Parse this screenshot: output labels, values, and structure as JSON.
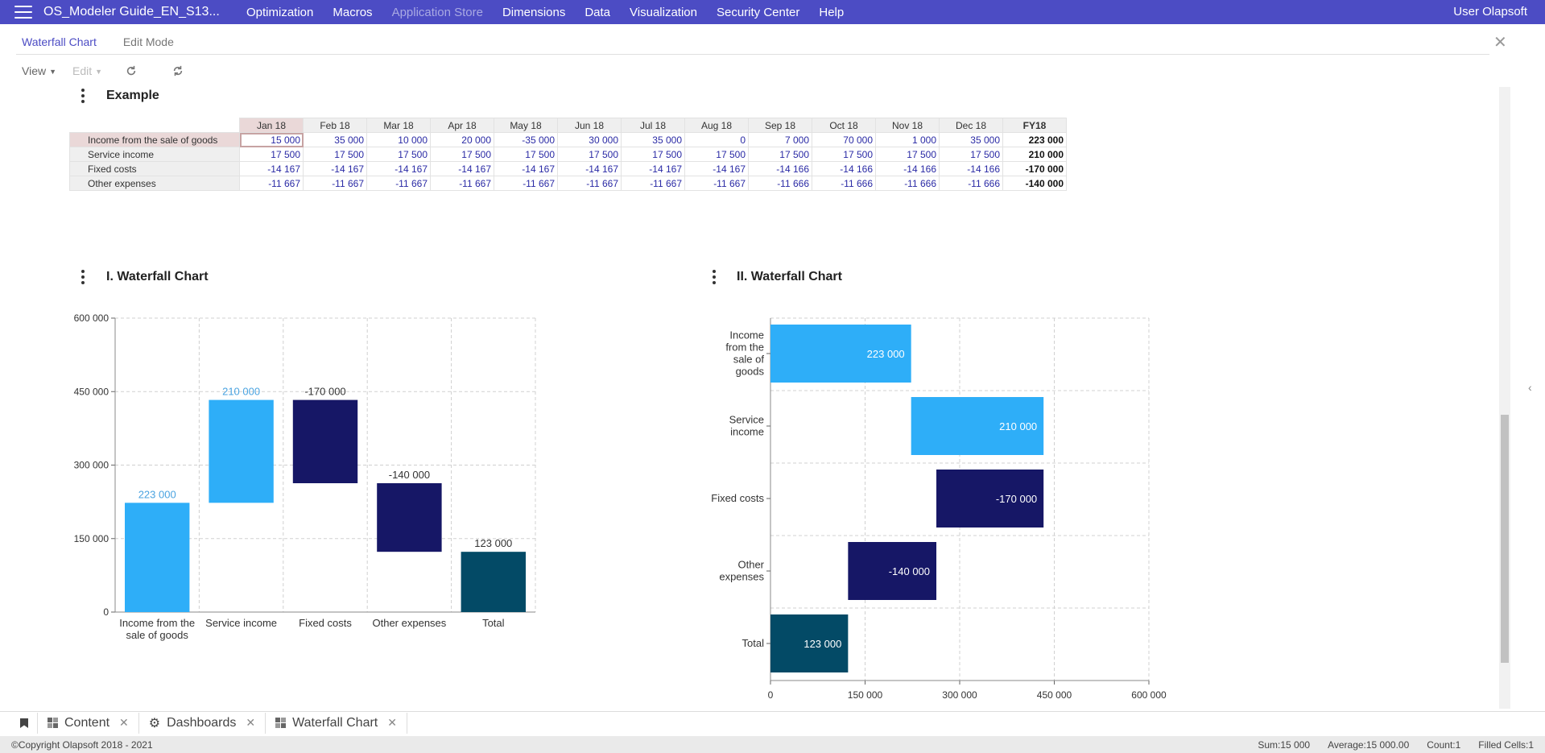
{
  "app": {
    "title": "OS_Modeler Guide_EN_S13...",
    "menu": [
      "Optimization",
      "Macros",
      "Application Store",
      "Dimensions",
      "Data",
      "Visualization",
      "Security Center",
      "Help"
    ],
    "user": "User Olapsoft"
  },
  "tabs": {
    "active": "Waterfall Chart",
    "edit": "Edit Mode"
  },
  "toolbar": {
    "view": "View",
    "edit": "Edit"
  },
  "example": {
    "title": "Example",
    "columns": [
      "Jan 18",
      "Feb 18",
      "Mar 18",
      "Apr 18",
      "May 18",
      "Jun 18",
      "Jul 18",
      "Aug 18",
      "Sep 18",
      "Oct 18",
      "Nov 18",
      "Dec 18",
      "FY18"
    ],
    "rows": [
      {
        "label": "Income from the sale of goods",
        "values": [
          "15 000",
          "35 000",
          "10 000",
          "20 000",
          "-35 000",
          "30 000",
          "35 000",
          "0",
          "7 000",
          "70 000",
          "1 000",
          "35 000",
          "223 000"
        ]
      },
      {
        "label": "Service income",
        "values": [
          "17 500",
          "17 500",
          "17 500",
          "17 500",
          "17 500",
          "17 500",
          "17 500",
          "17 500",
          "17 500",
          "17 500",
          "17 500",
          "17 500",
          "210 000"
        ]
      },
      {
        "label": "Fixed costs",
        "values": [
          "-14 167",
          "-14 167",
          "-14 167",
          "-14 167",
          "-14 167",
          "-14 167",
          "-14 167",
          "-14 167",
          "-14 166",
          "-14 166",
          "-14 166",
          "-14 166",
          "-170 000"
        ]
      },
      {
        "label": "Other expenses",
        "values": [
          "-11 667",
          "-11 667",
          "-11 667",
          "-11 667",
          "-11 667",
          "-11 667",
          "-11 667",
          "-11 667",
          "-11 666",
          "-11 666",
          "-11 666",
          "-11 666",
          "-140 000"
        ]
      }
    ]
  },
  "chart1": {
    "title": "I. Waterfall Chart"
  },
  "chart2": {
    "title": "II. Waterfall Chart"
  },
  "chart_data": [
    {
      "type": "bar",
      "orientation": "vertical",
      "waterfall": true,
      "categories": [
        "Income from the sale of goods",
        "Service income",
        "Fixed costs",
        "Other expenses",
        "Total"
      ],
      "values": [
        223000,
        210000,
        -170000,
        -140000,
        123000
      ],
      "labels": [
        "223 000",
        "210 000",
        "-170 000",
        "-140 000",
        "123 000"
      ],
      "ylim": [
        0,
        600000
      ],
      "yticks": [
        0,
        150000,
        300000,
        450000,
        600000
      ],
      "ytick_labels": [
        "0",
        "150 000",
        "300 000",
        "450 000",
        "600 000"
      ],
      "colors": [
        "#2eaef8",
        "#2eaef8",
        "#161766",
        "#161766",
        "#034a66"
      ],
      "label_colors": [
        "#4aa3e0",
        "#4aa3e0",
        "#333333",
        "#333333",
        "#333333"
      ],
      "grid": true
    },
    {
      "type": "bar",
      "orientation": "horizontal",
      "waterfall": true,
      "categories": [
        "Income from the sale of goods",
        "Service income",
        "Fixed costs",
        "Other expenses",
        "Total"
      ],
      "values": [
        223000,
        210000,
        -170000,
        -140000,
        123000
      ],
      "labels": [
        "223 000",
        "210 000",
        "-170 000",
        "-140 000",
        "123 000"
      ],
      "xlim": [
        0,
        600000
      ],
      "xticks": [
        0,
        150000,
        300000,
        450000,
        600000
      ],
      "xtick_labels": [
        "0",
        "150 000",
        "300 000",
        "450 000",
        "600 000"
      ],
      "colors": [
        "#2eaef8",
        "#2eaef8",
        "#161766",
        "#161766",
        "#034a66"
      ],
      "grid": true
    }
  ],
  "bottom_tabs": [
    "Content",
    "Dashboards",
    "Waterfall Chart"
  ],
  "status": {
    "copyright": "©Copyright Olapsoft 2018 - 2021",
    "sum": "Sum:15 000",
    "average": "Average:15 000.00",
    "count": "Count:1",
    "filled": "Filled Cells:1"
  }
}
